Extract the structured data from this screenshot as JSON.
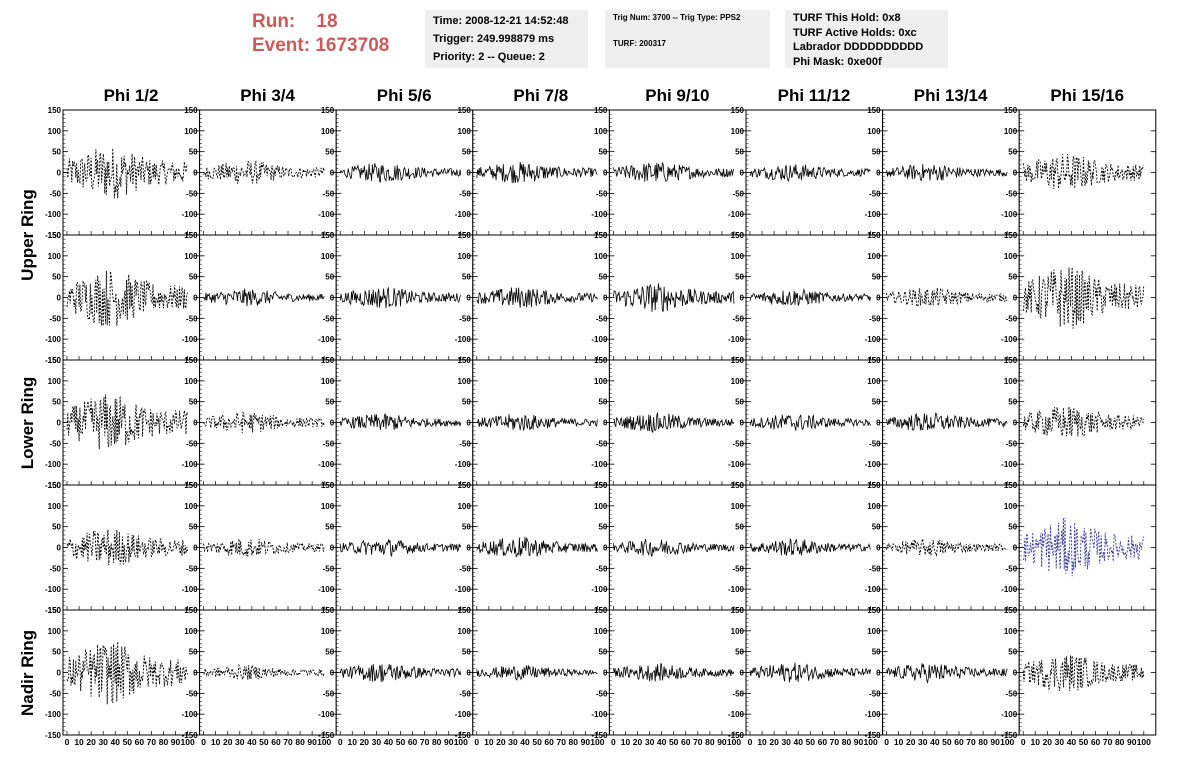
{
  "header": {
    "run_label": "Run:",
    "run_value": "18",
    "event_label": "Event:",
    "event_value": "1673708",
    "time": "Time: 2008-12-21 14:52:48",
    "trigger": "Trigger: 249.998879 ms",
    "priority": "Priority: 2 -- Queue: 2",
    "trig_num": "Trig Num: 3700 -- Trig Type: PPS2",
    "turf": "TURF: 200317",
    "turf_hold": "TURF This Hold: 0x8",
    "turf_active": "TURF Active Holds: 0xc",
    "labrador": "Labrador DDDDDDDDDD",
    "phi_mask": "Phi Mask: 0xe00f"
  },
  "chart_data": {
    "type": "line",
    "columns": [
      "Phi 1/2",
      "Phi 3/4",
      "Phi 5/6",
      "Phi 7/8",
      "Phi 9/10",
      "Phi 11/12",
      "Phi 13/14",
      "Phi 15/16"
    ],
    "rows": [
      "Upper Ring",
      "Lower Ring",
      "Nadir Ring"
    ],
    "ylim": [
      -150,
      150
    ],
    "xlim": [
      0,
      100
    ],
    "y_ticks": [
      -150,
      -100,
      -50,
      0,
      50,
      100,
      150
    ],
    "x_ticks": [
      0,
      10,
      20,
      30,
      40,
      50,
      60,
      70,
      80,
      90,
      100
    ],
    "amplitude_grid": [
      [
        55,
        25,
        20,
        22,
        22,
        18,
        18,
        40
      ],
      [
        60,
        18,
        22,
        22,
        30,
        18,
        20,
        65
      ],
      [
        60,
        22,
        18,
        18,
        20,
        18,
        20,
        35
      ],
      [
        40,
        20,
        18,
        22,
        18,
        18,
        18,
        60
      ],
      [
        65,
        15,
        20,
        15,
        18,
        20,
        20,
        40
      ]
    ],
    "dashed_grid": [
      [
        true,
        true,
        false,
        false,
        false,
        false,
        false,
        true
      ],
      [
        true,
        false,
        false,
        false,
        false,
        false,
        true,
        true
      ],
      [
        true,
        true,
        false,
        false,
        false,
        false,
        false,
        true
      ],
      [
        true,
        true,
        false,
        false,
        false,
        false,
        true,
        true
      ],
      [
        true,
        true,
        false,
        false,
        false,
        false,
        false,
        true
      ]
    ],
    "highlight": {
      "row": 3,
      "col": 7,
      "color": "#3a3a9a"
    },
    "line_color": "#000000"
  }
}
